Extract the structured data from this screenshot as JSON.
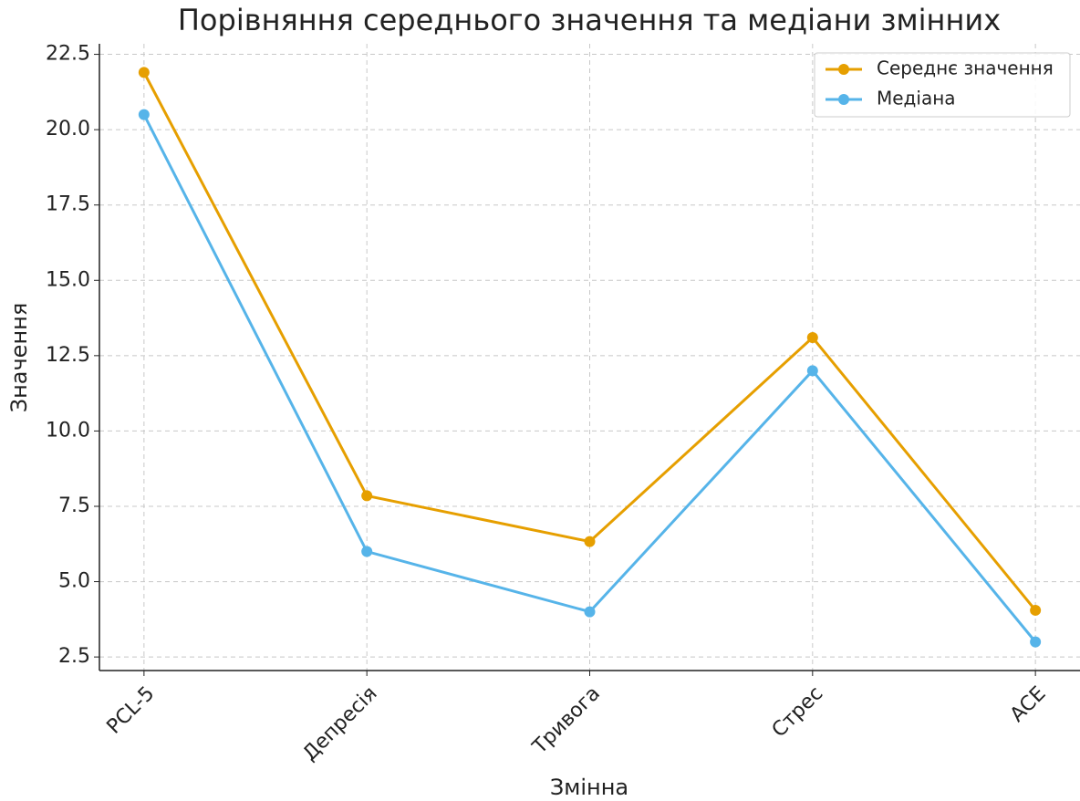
{
  "chart_data": {
    "type": "line",
    "title": "Порівняння середнього значення та медіани змінних",
    "x_label": "Змінна",
    "y_label": "Значення",
    "categories": [
      "PCL-5",
      "Депресія",
      "Тривога",
      "Стрес",
      "ACE"
    ],
    "series": [
      {
        "name": "Середнє значення",
        "color": "#E69F00",
        "values": [
          21.9,
          7.85,
          6.33,
          13.1,
          4.05
        ]
      },
      {
        "name": "Медіана",
        "color": "#56B4E9",
        "values": [
          20.5,
          6,
          4,
          12,
          3
        ]
      }
    ],
    "ylim": [
      2.05,
      22.85
    ],
    "yticks": [
      {
        "value": 2.5,
        "label": "2.5"
      },
      {
        "value": 5,
        "label": "5.0"
      },
      {
        "value": 7.5,
        "label": "7.5"
      },
      {
        "value": 10,
        "label": "10.0"
      },
      {
        "value": 12.5,
        "label": "12.5"
      },
      {
        "value": 15,
        "label": "15.0"
      },
      {
        "value": 17.5,
        "label": "17.5"
      },
      {
        "value": 20,
        "label": "20.0"
      },
      {
        "value": 22.5,
        "label": "22.5"
      }
    ],
    "grid": true,
    "legend": "upper right"
  }
}
